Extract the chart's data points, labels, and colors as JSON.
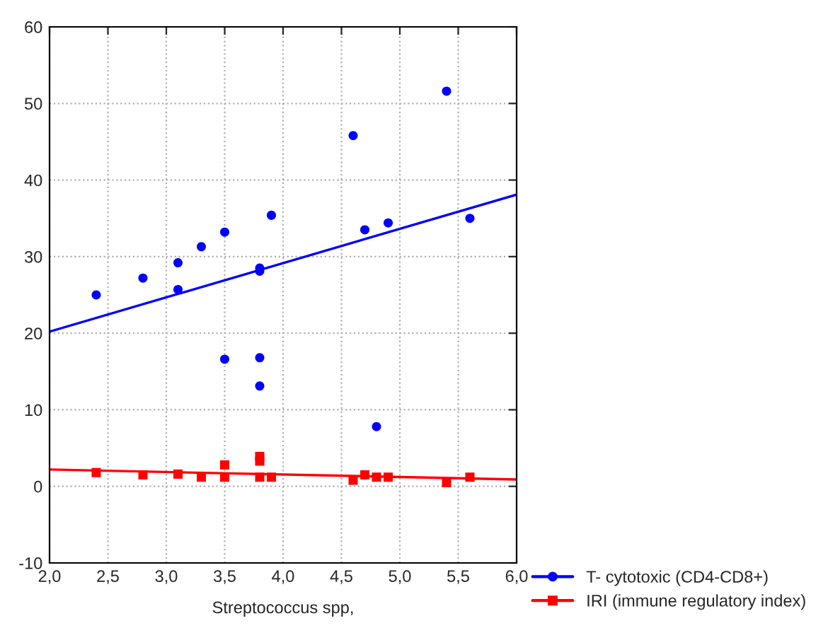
{
  "chart_data": {
    "type": "scatter",
    "xlabel": "Streptococcus spp,",
    "xlim": [
      2.0,
      6.0
    ],
    "ylim": [
      -10,
      60
    ],
    "xticks": [
      {
        "value": 2.0,
        "label": "2,0"
      },
      {
        "value": 2.5,
        "label": "2,5"
      },
      {
        "value": 3.0,
        "label": "3,0"
      },
      {
        "value": 3.5,
        "label": "3,5"
      },
      {
        "value": 4.0,
        "label": "4,0"
      },
      {
        "value": 4.5,
        "label": "4,5"
      },
      {
        "value": 5.0,
        "label": "5,0"
      },
      {
        "value": 5.5,
        "label": "5,5"
      },
      {
        "value": 6.0,
        "label": "6,0"
      }
    ],
    "yticks": [
      -10,
      0,
      10,
      20,
      30,
      40,
      50,
      60
    ],
    "grid": true,
    "legend": "bottom right",
    "series": [
      {
        "name": "T- cytotoxic (CD4-CD8+)",
        "color": "#0000ff",
        "marker": "circle",
        "x": [
          2.4,
          2.8,
          3.1,
          3.1,
          3.3,
          3.5,
          3.5,
          3.8,
          3.8,
          3.8,
          3.8,
          3.9,
          4.6,
          4.7,
          4.8,
          4.9,
          5.4,
          5.6
        ],
        "values": [
          25.0,
          27.2,
          29.2,
          25.7,
          31.3,
          33.2,
          16.6,
          28.5,
          28.1,
          16.8,
          13.1,
          35.4,
          45.8,
          33.5,
          7.8,
          34.4,
          51.6,
          35.0
        ]
      },
      {
        "name": "IRI (immune regulatory index)",
        "color": "#ff0000",
        "marker": "square",
        "x": [
          2.4,
          2.8,
          3.1,
          3.3,
          3.5,
          3.5,
          3.8,
          3.8,
          3.8,
          3.9,
          4.6,
          4.7,
          4.8,
          4.9,
          5.4,
          5.6
        ],
        "values": [
          1.8,
          1.5,
          1.6,
          1.2,
          2.8,
          1.2,
          3.9,
          3.3,
          1.2,
          1.2,
          0.8,
          1.5,
          1.2,
          1.2,
          0.5,
          1.2
        ]
      },
      {
        "type": "line",
        "marker": "none",
        "color": "#0000ff",
        "x": [
          2.0,
          6.0
        ],
        "values": [
          20.2,
          38.1
        ]
      },
      {
        "type": "line",
        "marker": "none",
        "color": "#ff0000",
        "x": [
          2.0,
          6.0
        ],
        "values": [
          2.2,
          0.9
        ]
      }
    ]
  }
}
